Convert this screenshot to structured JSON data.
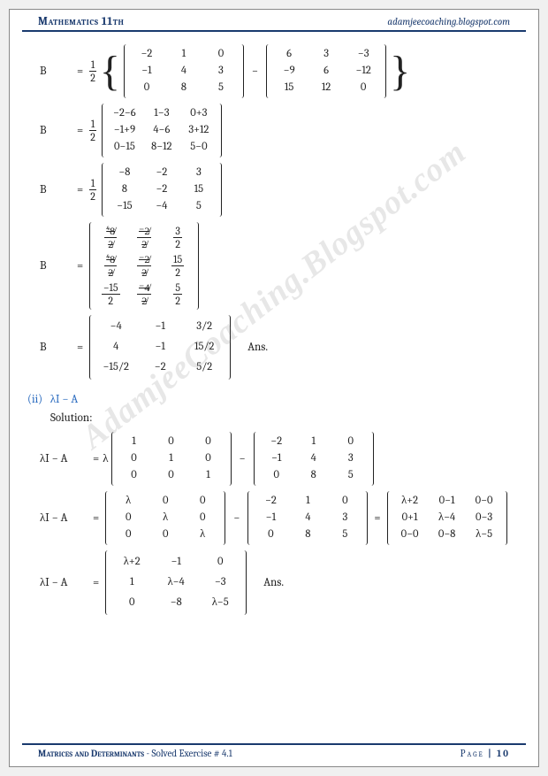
{
  "header": {
    "left": "Mathematics 11th",
    "right": "adamjeecoaching.blogspot.com"
  },
  "footer": {
    "chapter": "Matrices and Determinants",
    "exercise": " - Solved Exercise # 4.1",
    "page_label": "Page",
    "page_num": "| 10"
  },
  "watermark": "AdamjeeCoaching.Blogspot.com",
  "labels": {
    "B": "B",
    "half": "1/2",
    "eq": "=",
    "minus": "−",
    "ans": "Ans.",
    "lambdaIA": "λI − A",
    "lambda": "λ",
    "sol": "Solution:",
    "part_ii": "(ii)"
  },
  "m1a": [
    [
      "−2",
      "1",
      "0"
    ],
    [
      "−1",
      "4",
      "3"
    ],
    [
      "0",
      "8",
      "5"
    ]
  ],
  "m1b": [
    [
      "6",
      "3",
      "−3"
    ],
    [
      "−9",
      "6",
      "−12"
    ],
    [
      "15",
      "12",
      "0"
    ]
  ],
  "m2": [
    [
      "−2−6",
      "1−3",
      "0+3"
    ],
    [
      "−1+9",
      "4−6",
      "3+12"
    ],
    [
      "0−15",
      "8−12",
      "5−0"
    ]
  ],
  "m3": [
    [
      "−8",
      "−2",
      "3"
    ],
    [
      "8",
      "−2",
      "15"
    ],
    [
      "−15",
      "−4",
      "5"
    ]
  ],
  "m4": [
    [
      {
        "n": "⁴8̸",
        "ns": 1,
        "d": "2̸",
        "ds": 1
      },
      {
        "n": "⁻2̸",
        "ns": 1,
        "d": "2̸",
        "ds": 1
      },
      {
        "n": "3",
        "d": "2"
      }
    ],
    [
      {
        "n": "⁴8̸",
        "ns": 1,
        "d": "2̸",
        "ds": 1
      },
      {
        "n": "⁻2̸",
        "ns": 1,
        "d": "2̸",
        "ds": 1
      },
      {
        "n": "15",
        "d": "2"
      }
    ],
    [
      {
        "n": "−15",
        "d": "2"
      },
      {
        "n": "⁻4̸",
        "ns": 1,
        "d": "2̸",
        "ds": 1
      },
      {
        "n": "5",
        "d": "2"
      }
    ]
  ],
  "m5": [
    [
      "−4",
      "−1",
      "3/2"
    ],
    [
      "4",
      "−1",
      "15/2"
    ],
    [
      "−15/2",
      "−2",
      "5/2"
    ]
  ],
  "mI": [
    [
      "1",
      "0",
      "0"
    ],
    [
      "0",
      "1",
      "0"
    ],
    [
      "0",
      "0",
      "1"
    ]
  ],
  "mA": [
    [
      "−2",
      "1",
      "0"
    ],
    [
      "−1",
      "4",
      "3"
    ],
    [
      "0",
      "8",
      "5"
    ]
  ],
  "mLI": [
    [
      "λ",
      "0",
      "0"
    ],
    [
      "0",
      "λ",
      "0"
    ],
    [
      "0",
      "0",
      "λ"
    ]
  ],
  "mR": [
    [
      "λ+2",
      "0−1",
      "0−0"
    ],
    [
      "0+1",
      "λ−4",
      "0−3"
    ],
    [
      "0−0",
      "0−8",
      "λ−5"
    ]
  ],
  "mF": [
    [
      "λ+2",
      "−1",
      "0"
    ],
    [
      "1",
      "λ−4",
      "−3"
    ],
    [
      "0",
      "−8",
      "λ−5"
    ]
  ]
}
